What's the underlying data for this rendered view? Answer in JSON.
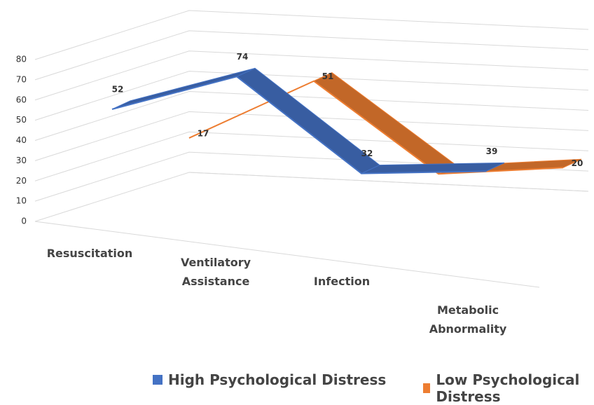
{
  "chart_data": {
    "type": "line3d",
    "categories": [
      "Resuscitation",
      "Ventilatory Assistance",
      "Infection",
      "Metabolic Abnormality"
    ],
    "series": [
      {
        "name": "High Psychological Distress",
        "color": "#4472c4",
        "values": [
          52,
          74,
          32,
          39
        ]
      },
      {
        "name": "Low Psychological Distress",
        "color": "#ed7d31",
        "values": [
          17,
          51,
          11,
          20
        ]
      }
    ],
    "ylim": [
      0,
      80
    ],
    "yticks": [
      0,
      10,
      20,
      30,
      40,
      50,
      60,
      70,
      80
    ],
    "grid": true,
    "legend": "bottom"
  }
}
